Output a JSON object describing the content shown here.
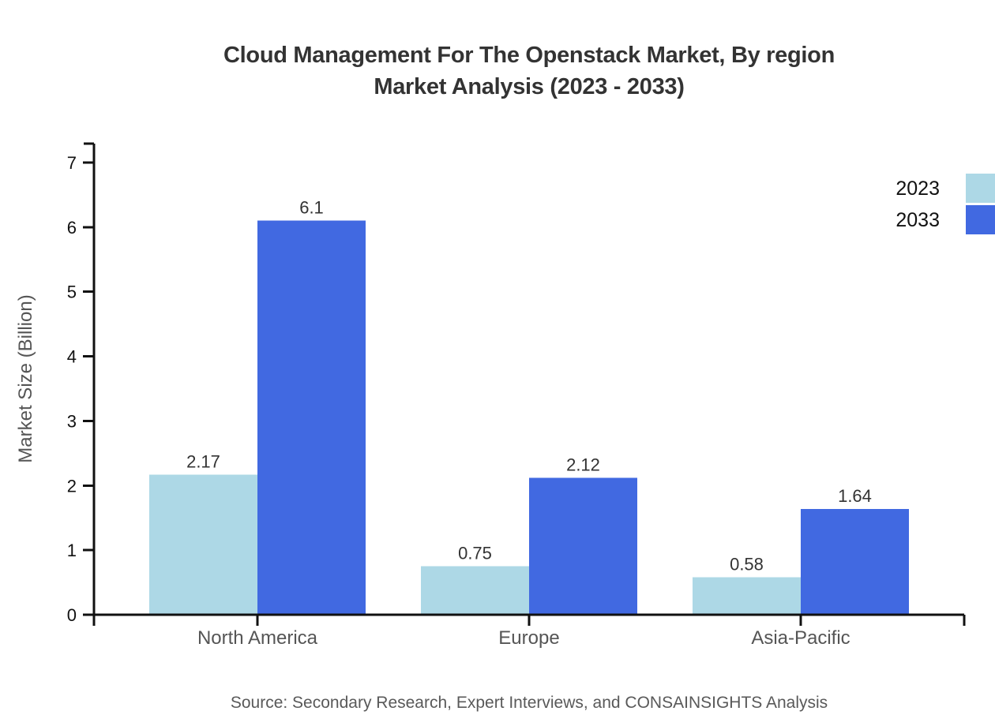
{
  "chart_data": {
    "type": "bar",
    "title": "Cloud Management For The Openstack Market, By region Market Analysis (2023 - 2033)",
    "title_lines": [
      "Cloud Management For The Openstack Market, By region",
      "Market Analysis (2023 - 2033)"
    ],
    "categories": [
      "North America",
      "Europe",
      "Asia-Pacific"
    ],
    "series": [
      {
        "name": "2023",
        "color": "#ADD8E6",
        "values": [
          2.17,
          0.75,
          0.58
        ]
      },
      {
        "name": "2033",
        "color": "#4169E1",
        "values": [
          6.1,
          2.12,
          1.64
        ]
      }
    ],
    "xlabel": "",
    "ylabel": "Market Size (Billion)",
    "ylim": [
      0,
      7
    ],
    "yticks": [
      0,
      1,
      2,
      3,
      4,
      5,
      6,
      7
    ],
    "grid": false,
    "legend_position": "top-right",
    "bar_value_labels": true
  },
  "source_note": "Source: Secondary Research, Expert Interviews, and CONSAINSIGHTS Analysis",
  "colors": {
    "background": "#ffffff",
    "axis": "#111111",
    "tick_label": "#111111",
    "category_label": "#555555",
    "value_label": "#333333",
    "y_axis_label": "#555555",
    "title": "#333333",
    "legend_label": "#111111",
    "source": "#595959"
  }
}
